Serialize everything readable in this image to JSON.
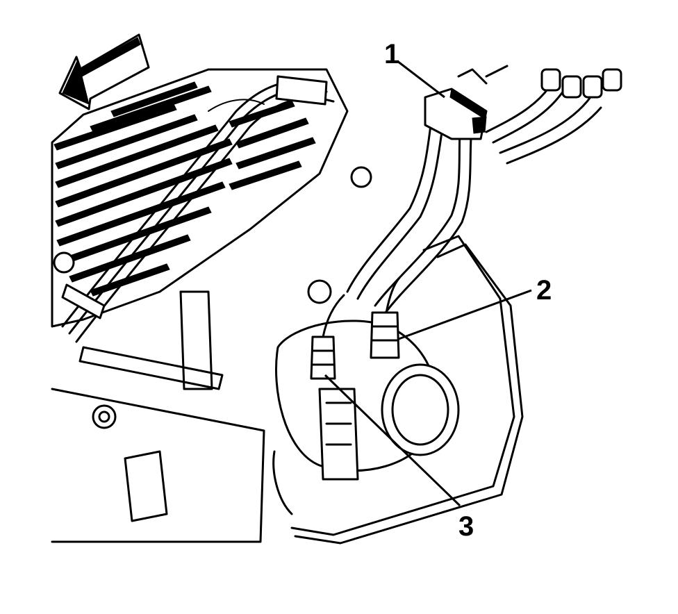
{
  "diagram": {
    "callouts": [
      {
        "number": "1",
        "part": "fuel-line-quick-connector"
      },
      {
        "number": "2",
        "part": "fuel-line-fitting-right"
      },
      {
        "number": "3",
        "part": "fuel-line-fitting-left"
      }
    ],
    "direction_arrow": "front-direction-arrow",
    "colors": {
      "ink": "#000000",
      "background": "#ffffff"
    }
  }
}
